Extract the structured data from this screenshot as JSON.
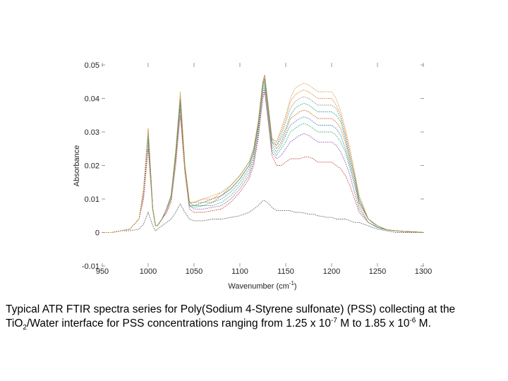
{
  "chart_data": {
    "type": "line",
    "title": "",
    "xlabel": "Wavenumber (cm",
    "xlabel_sup": "-1",
    "xlabel_end": ")",
    "ylabel": "Absorbance",
    "xlim": [
      950,
      1300
    ],
    "ylim": [
      -0.01,
      0.05
    ],
    "xticks": [
      "950",
      "1000",
      "1050",
      "1100",
      "1150",
      "1200",
      "1250",
      "1300"
    ],
    "xtick_values": [
      950,
      1000,
      1050,
      1100,
      1150,
      1200,
      1250,
      1300
    ],
    "yticks": [
      "-0.01",
      "0",
      "0.01",
      "0.02",
      "0.03",
      "0.04",
      "0.05"
    ],
    "ytick_values": [
      -0.01,
      0,
      0.01,
      0.02,
      0.03,
      0.04,
      0.05
    ],
    "grid": false,
    "x": [
      950,
      960,
      970,
      980,
      990,
      995,
      1000,
      1005,
      1008,
      1010,
      1015,
      1020,
      1025,
      1030,
      1035,
      1040,
      1045,
      1050,
      1060,
      1070,
      1080,
      1090,
      1100,
      1110,
      1115,
      1120,
      1125,
      1127,
      1130,
      1135,
      1140,
      1145,
      1150,
      1155,
      1160,
      1165,
      1170,
      1175,
      1180,
      1185,
      1190,
      1195,
      1200,
      1205,
      1210,
      1215,
      1220,
      1225,
      1230,
      1240,
      1250,
      1260,
      1270,
      1280,
      1290,
      1300
    ],
    "series": [
      {
        "color": "#555555",
        "values": [
          0,
          0,
          0.0005,
          0.0005,
          0.001,
          0.0025,
          0.006,
          0.002,
          0.0005,
          0.001,
          0.002,
          0.003,
          0.004,
          0.006,
          0.0085,
          0.006,
          0.004,
          0.0035,
          0.0035,
          0.004,
          0.004,
          0.0045,
          0.005,
          0.006,
          0.007,
          0.008,
          0.0095,
          0.0095,
          0.009,
          0.0075,
          0.0065,
          0.0065,
          0.0065,
          0.0065,
          0.006,
          0.006,
          0.0058,
          0.0055,
          0.0055,
          0.005,
          0.0048,
          0.0045,
          0.0045,
          0.004,
          0.004,
          0.004,
          0.0035,
          0.003,
          0.003,
          0.002,
          0.001,
          0.0005,
          0,
          0,
          0,
          0
        ]
      },
      {
        "color": "#c0392b",
        "values": [
          0,
          0,
          0.0005,
          0.001,
          0.004,
          0.01,
          0.025,
          0.007,
          0.002,
          0.002,
          0.004,
          0.006,
          0.009,
          0.02,
          0.035,
          0.018,
          0.007,
          0.006,
          0.006,
          0.0065,
          0.007,
          0.009,
          0.012,
          0.016,
          0.02,
          0.028,
          0.04,
          0.042,
          0.035,
          0.023,
          0.02,
          0.02,
          0.021,
          0.022,
          0.022,
          0.022,
          0.0225,
          0.0225,
          0.022,
          0.021,
          0.021,
          0.021,
          0.021,
          0.02,
          0.019,
          0.017,
          0.014,
          0.01,
          0.006,
          0.003,
          0.0015,
          0.0008,
          0.0005,
          0.0003,
          0.0002,
          0
        ]
      },
      {
        "color": "#8e44ad",
        "values": [
          0,
          0,
          0.0005,
          0.001,
          0.004,
          0.011,
          0.027,
          0.007,
          0.002,
          0.002,
          0.004,
          0.006,
          0.01,
          0.022,
          0.037,
          0.019,
          0.008,
          0.007,
          0.007,
          0.0075,
          0.008,
          0.01,
          0.013,
          0.017,
          0.021,
          0.029,
          0.041,
          0.043,
          0.036,
          0.024,
          0.022,
          0.023,
          0.025,
          0.027,
          0.028,
          0.029,
          0.0295,
          0.029,
          0.028,
          0.027,
          0.027,
          0.027,
          0.027,
          0.026,
          0.024,
          0.021,
          0.017,
          0.012,
          0.007,
          0.003,
          0.0015,
          0.0008,
          0.0005,
          0.0003,
          0.0002,
          0
        ]
      },
      {
        "color": "#27ae60",
        "values": [
          0,
          0,
          0.0005,
          0.001,
          0.004,
          0.012,
          0.028,
          0.007,
          0.002,
          0.002,
          0.004,
          0.007,
          0.01,
          0.022,
          0.038,
          0.019,
          0.008,
          0.0075,
          0.008,
          0.008,
          0.009,
          0.011,
          0.014,
          0.018,
          0.022,
          0.03,
          0.042,
          0.044,
          0.037,
          0.025,
          0.023,
          0.025,
          0.027,
          0.03,
          0.031,
          0.032,
          0.0325,
          0.032,
          0.031,
          0.03,
          0.03,
          0.03,
          0.03,
          0.029,
          0.027,
          0.024,
          0.019,
          0.014,
          0.008,
          0.003,
          0.0015,
          0.0008,
          0.0005,
          0.0003,
          0.0002,
          0
        ]
      },
      {
        "color": "#2980b9",
        "values": [
          0,
          0,
          0.0005,
          0.001,
          0.004,
          0.012,
          0.029,
          0.007,
          0.002,
          0.002,
          0.004,
          0.007,
          0.011,
          0.023,
          0.039,
          0.02,
          0.008,
          0.008,
          0.008,
          0.009,
          0.01,
          0.012,
          0.015,
          0.019,
          0.023,
          0.031,
          0.043,
          0.045,
          0.038,
          0.026,
          0.024,
          0.026,
          0.029,
          0.032,
          0.033,
          0.034,
          0.0345,
          0.034,
          0.033,
          0.032,
          0.032,
          0.032,
          0.032,
          0.031,
          0.029,
          0.025,
          0.02,
          0.015,
          0.009,
          0.004,
          0.0015,
          0.0008,
          0.0005,
          0.0003,
          0.0002,
          0
        ]
      },
      {
        "color": "#d35400",
        "values": [
          0,
          0,
          0.0005,
          0.001,
          0.004,
          0.012,
          0.03,
          0.007,
          0.002,
          0.002,
          0.004,
          0.007,
          0.011,
          0.023,
          0.04,
          0.02,
          0.009,
          0.008,
          0.009,
          0.009,
          0.011,
          0.013,
          0.016,
          0.02,
          0.024,
          0.032,
          0.044,
          0.046,
          0.039,
          0.027,
          0.025,
          0.027,
          0.03,
          0.034,
          0.035,
          0.036,
          0.0365,
          0.036,
          0.035,
          0.034,
          0.034,
          0.034,
          0.034,
          0.033,
          0.031,
          0.027,
          0.021,
          0.016,
          0.009,
          0.004,
          0.002,
          0.0008,
          0.0005,
          0.0003,
          0.0002,
          0
        ]
      },
      {
        "color": "#16a085",
        "values": [
          0,
          0,
          0.0005,
          0.001,
          0.004,
          0.013,
          0.03,
          0.007,
          0.002,
          0.002,
          0.004,
          0.007,
          0.011,
          0.024,
          0.04,
          0.02,
          0.009,
          0.008,
          0.009,
          0.01,
          0.011,
          0.013,
          0.016,
          0.02,
          0.024,
          0.032,
          0.044,
          0.046,
          0.039,
          0.027,
          0.026,
          0.028,
          0.031,
          0.035,
          0.037,
          0.038,
          0.0385,
          0.038,
          0.037,
          0.036,
          0.036,
          0.036,
          0.036,
          0.035,
          0.033,
          0.028,
          0.022,
          0.017,
          0.01,
          0.004,
          0.002,
          0.0008,
          0.0005,
          0.0003,
          0.0002,
          0
        ]
      },
      {
        "color": "#7f8c8d",
        "values": [
          0,
          0,
          0.0005,
          0.001,
          0.004,
          0.013,
          0.031,
          0.007,
          0.002,
          0.002,
          0.004,
          0.007,
          0.011,
          0.024,
          0.041,
          0.02,
          0.009,
          0.009,
          0.009,
          0.01,
          0.011,
          0.014,
          0.017,
          0.021,
          0.025,
          0.033,
          0.045,
          0.047,
          0.04,
          0.028,
          0.026,
          0.029,
          0.033,
          0.037,
          0.039,
          0.04,
          0.0405,
          0.04,
          0.039,
          0.038,
          0.038,
          0.038,
          0.038,
          0.037,
          0.034,
          0.029,
          0.023,
          0.017,
          0.01,
          0.004,
          0.002,
          0.0008,
          0.0005,
          0.0003,
          0.0002,
          0
        ]
      },
      {
        "color": "#e67e22",
        "values": [
          0,
          0,
          0.0005,
          0.001,
          0.004,
          0.013,
          0.031,
          0.007,
          0.002,
          0.002,
          0.004,
          0.007,
          0.011,
          0.024,
          0.041,
          0.02,
          0.009,
          0.009,
          0.01,
          0.01,
          0.012,
          0.014,
          0.017,
          0.021,
          0.025,
          0.033,
          0.045,
          0.047,
          0.04,
          0.028,
          0.027,
          0.03,
          0.034,
          0.039,
          0.041,
          0.042,
          0.0425,
          0.042,
          0.041,
          0.04,
          0.04,
          0.04,
          0.04,
          0.038,
          0.035,
          0.03,
          0.024,
          0.018,
          0.011,
          0.004,
          0.002,
          0.0008,
          0.0005,
          0.0003,
          0.0002,
          0
        ]
      },
      {
        "color": "#c8a040",
        "values": [
          0,
          0,
          0.0005,
          0.001,
          0.004,
          0.013,
          0.031,
          0.007,
          0.002,
          0.002,
          0.004,
          0.007,
          0.011,
          0.024,
          0.042,
          0.02,
          0.009,
          0.009,
          0.01,
          0.011,
          0.012,
          0.014,
          0.017,
          0.021,
          0.025,
          0.033,
          0.045,
          0.047,
          0.04,
          0.028,
          0.027,
          0.031,
          0.035,
          0.04,
          0.043,
          0.044,
          0.0445,
          0.044,
          0.043,
          0.042,
          0.042,
          0.042,
          0.042,
          0.04,
          0.036,
          0.031,
          0.025,
          0.018,
          0.011,
          0.004,
          0.002,
          0.0008,
          0.0005,
          0.0003,
          0.0002,
          0
        ]
      }
    ]
  },
  "caption": {
    "part1": "Typical ATR FTIR spectra series for Poly(Sodium 4-Styrene sulfonate) (PSS) collecting at the TiO",
    "sub1": "2",
    "part2": "/Water interface for PSS concentrations ranging from 1.25 x 10",
    "sup1": "-7",
    "part3": " M to 1.85 x 10",
    "sup2": "-6",
    "part4": " M."
  }
}
